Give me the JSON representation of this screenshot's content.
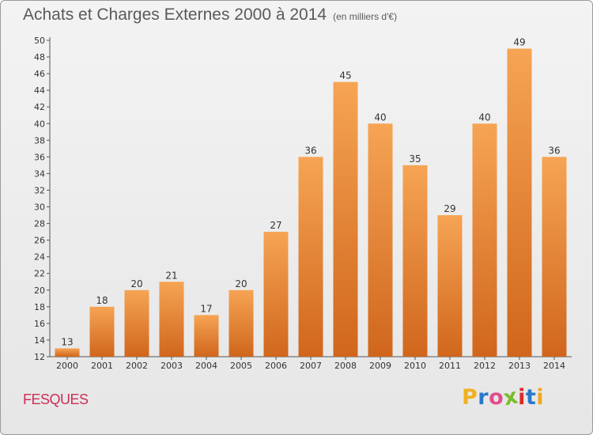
{
  "header": {
    "title": "Achats et Charges Externes 2000 à 2014",
    "unit": "(en milliers d'€)"
  },
  "footer": {
    "place": "FESQUES",
    "brand_letters": [
      "P",
      "r",
      "o",
      "x",
      "i",
      "t",
      "i"
    ],
    "brand_colors": [
      "#f0b020",
      "#2a78c8",
      "#e04d8c",
      "#7cbb2c",
      "#e02828",
      "#2a78c8",
      "#f0a81c"
    ]
  },
  "colors": {
    "bar_light": "#f6a454",
    "bar_dark": "#d0661c",
    "place_text": "#cc2f55"
  },
  "chart_data": {
    "type": "bar",
    "title": "Achats et Charges Externes 2000 à 2014",
    "subtitle": "(en milliers d'€)",
    "xlabel": "",
    "ylabel": "",
    "categories": [
      "2000",
      "2001",
      "2002",
      "2003",
      "2004",
      "2005",
      "2006",
      "2007",
      "2008",
      "2009",
      "2010",
      "2011",
      "2012",
      "2013",
      "2014"
    ],
    "values": [
      13,
      18,
      20,
      21,
      17,
      20,
      27,
      36,
      45,
      40,
      35,
      29,
      40,
      49,
      36
    ],
    "ylim": [
      12,
      50
    ],
    "yticks": [
      12,
      14,
      16,
      18,
      20,
      22,
      24,
      26,
      28,
      30,
      32,
      34,
      36,
      38,
      40,
      42,
      44,
      46,
      48,
      50
    ],
    "grid": false,
    "data_labels": true
  }
}
